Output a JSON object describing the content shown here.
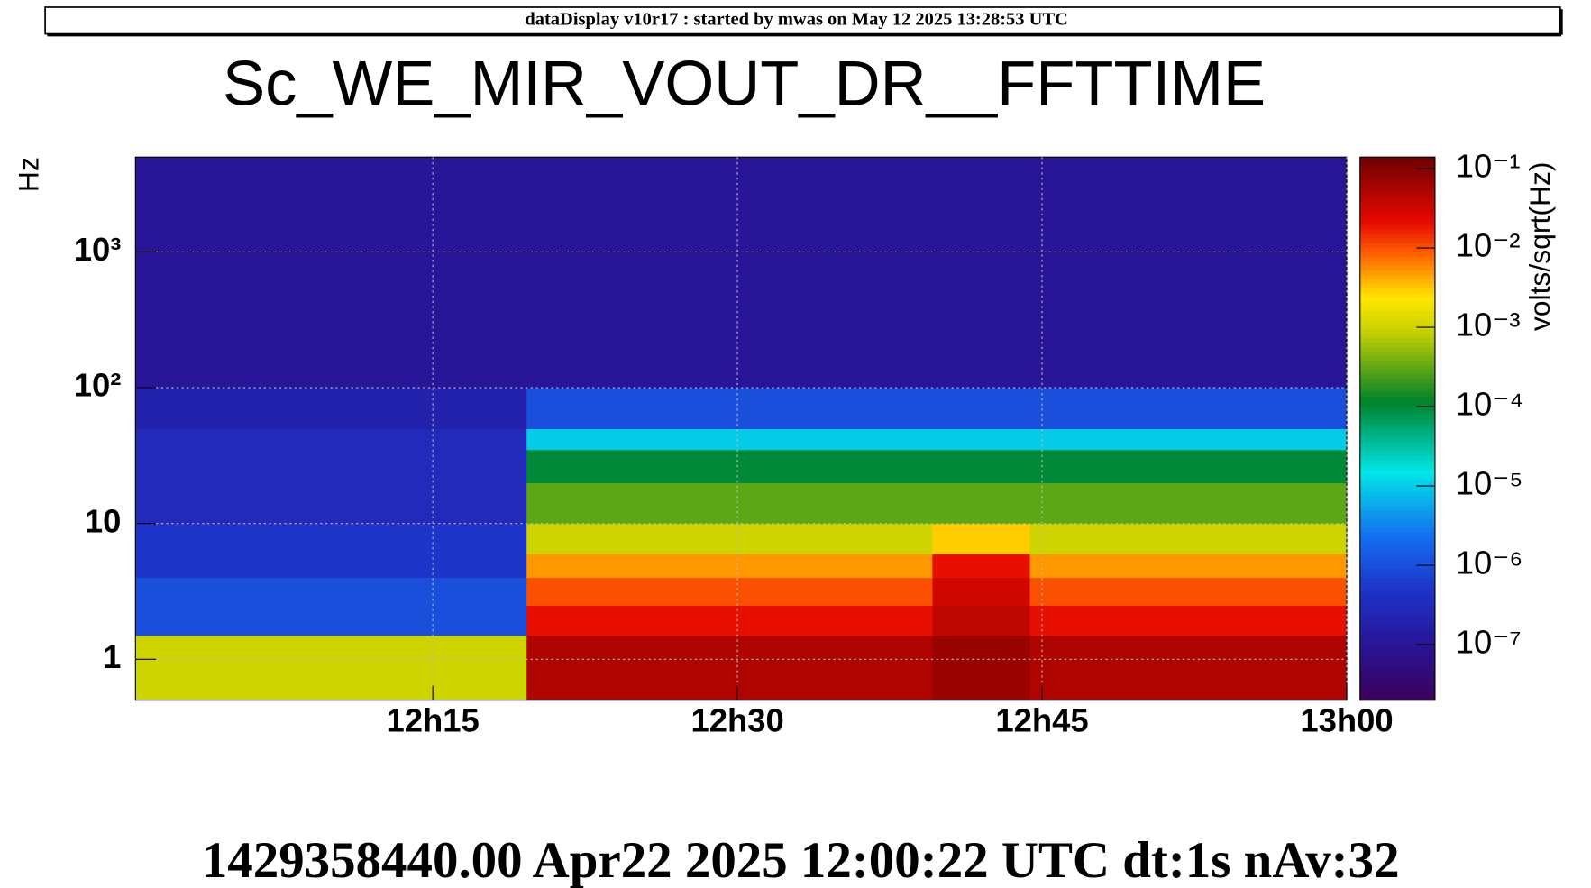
{
  "chart_data": {
    "type": "heatmap",
    "header": "dataDisplay v10r17 : started by mwas on May 12 2025 13:28:53 UTC",
    "title": "Sc_WE_MIR_VOUT_DR__FFTTIME",
    "footer": "1429358440.00 Apr22 2025 12:00:22 UTC dt:1s nAv:32",
    "ylabel": "Hz",
    "zlabel": "volts/sqrt(Hz)",
    "log_y": true,
    "log_z": true,
    "grid": true,
    "xlim": [
      12.006,
      13.0
    ],
    "xticks": [
      {
        "value": 12.25,
        "label": "12h15"
      },
      {
        "value": 12.5,
        "label": "12h30"
      },
      {
        "value": 12.75,
        "label": "12h45"
      },
      {
        "value": 13.0,
        "label": "13h00"
      }
    ],
    "ylim": [
      0.5,
      5000
    ],
    "yticks": [
      1,
      10,
      {
        "value": 100,
        "label": "10²"
      },
      {
        "value": 1000,
        "label": "10³"
      }
    ],
    "zlim": [
      2e-08,
      0.14
    ],
    "zticks": [
      {
        "value": 1e-07,
        "label": "10⁻⁷"
      },
      {
        "value": 1e-06,
        "label": "10⁻⁶"
      },
      {
        "value": 1e-05,
        "label": "10⁻⁵"
      },
      {
        "value": 0.0001,
        "label": "10⁻⁴"
      },
      {
        "value": 0.001,
        "label": "10⁻³"
      },
      {
        "value": 0.01,
        "label": "10⁻²"
      },
      {
        "value": 0.1,
        "label": "10⁻¹"
      }
    ],
    "x_bins": [
      12.006,
      12.327,
      12.66,
      12.74,
      13.0
    ],
    "y_bins": [
      0.5,
      1.5,
      2.5,
      4,
      6,
      10,
      20,
      35,
      50,
      100,
      5000
    ],
    "z": [
      [
        0.001,
        0.05,
        0.07,
        0.05
      ],
      [
        1e-06,
        0.02,
        0.04,
        0.02
      ],
      [
        1e-06,
        0.01,
        0.03,
        0.01
      ],
      [
        5e-07,
        0.005,
        0.02,
        0.005
      ],
      [
        5e-07,
        0.001,
        0.003,
        0.001
      ],
      [
        3e-07,
        0.0003,
        0.0003,
        0.0003
      ],
      [
        3e-07,
        0.0001,
        0.0001,
        0.0001
      ],
      [
        3e-07,
        1e-05,
        1e-05,
        1e-05
      ],
      [
        2e-07,
        1e-06,
        1e-06,
        1e-06
      ],
      [
        1e-07,
        1e-07,
        1e-07,
        1e-07
      ]
    ]
  }
}
